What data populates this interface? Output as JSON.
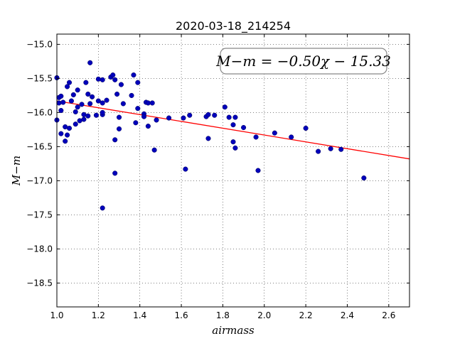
{
  "chart_data": {
    "type": "scatter",
    "title": "2020-03-18_214254",
    "xlabel": "airmass",
    "ylabel": "M−m",
    "xlim": [
      1.0,
      2.7
    ],
    "ylim": [
      -18.85,
      -14.85
    ],
    "y_inverted": true,
    "grid": true,
    "xticks": [
      1.0,
      1.2,
      1.4,
      1.6,
      1.8,
      2.0,
      2.2,
      2.4,
      2.6
    ],
    "xtick_labels": [
      "1.0",
      "1.2",
      "1.4",
      "1.6",
      "1.8",
      "2.0",
      "2.2",
      "2.4",
      "2.6"
    ],
    "yticks": [
      -15.0,
      -15.5,
      -16.0,
      -16.5,
      -17.0,
      -17.5,
      -18.0,
      -18.5
    ],
    "ytick_labels": [
      "−15.0",
      "−15.5",
      "−16.0",
      "−16.5",
      "−17.0",
      "−17.5",
      "−18.0",
      "−18.5"
    ],
    "annotation": "M−m = −0.50χ − 15.33",
    "fit": {
      "slope": -0.5,
      "intercept": -15.33,
      "x_range": [
        1.0,
        2.7
      ],
      "color": "#ff0000"
    },
    "point_color": "#0000bb",
    "points": [
      [
        1.0,
        -15.49
      ],
      [
        1.0,
        -16.11
      ],
      [
        1.01,
        -15.78
      ],
      [
        1.01,
        -15.86
      ],
      [
        1.02,
        -15.76
      ],
      [
        1.02,
        -15.97
      ],
      [
        1.02,
        -16.31
      ],
      [
        1.03,
        -15.85
      ],
      [
        1.04,
        -16.21
      ],
      [
        1.04,
        -16.42
      ],
      [
        1.05,
        -16.33
      ],
      [
        1.05,
        -15.62
      ],
      [
        1.06,
        -15.56
      ],
      [
        1.06,
        -16.23
      ],
      [
        1.07,
        -15.83
      ],
      [
        1.08,
        -15.74
      ],
      [
        1.09,
        -15.99
      ],
      [
        1.09,
        -16.17
      ],
      [
        1.1,
        -15.67
      ],
      [
        1.1,
        -15.92
      ],
      [
        1.11,
        -16.12
      ],
      [
        1.12,
        -15.88
      ],
      [
        1.13,
        -16.03
      ],
      [
        1.13,
        -16.1
      ],
      [
        1.14,
        -15.56
      ],
      [
        1.15,
        -15.73
      ],
      [
        1.15,
        -16.05
      ],
      [
        1.16,
        -15.87
      ],
      [
        1.16,
        -15.27
      ],
      [
        1.17,
        -15.77
      ],
      [
        1.19,
        -16.04
      ],
      [
        1.2,
        -15.51
      ],
      [
        1.2,
        -15.83
      ],
      [
        1.22,
        -15.52
      ],
      [
        1.22,
        -15.86
      ],
      [
        1.22,
        -16.03
      ],
      [
        1.22,
        -16.0
      ],
      [
        1.22,
        -17.4
      ],
      [
        1.24,
        -15.82
      ],
      [
        1.26,
        -15.48
      ],
      [
        1.27,
        -15.45
      ],
      [
        1.28,
        -15.52
      ],
      [
        1.28,
        -16.4
      ],
      [
        1.28,
        -16.89
      ],
      [
        1.29,
        -15.73
      ],
      [
        1.3,
        -16.07
      ],
      [
        1.3,
        -16.24
      ],
      [
        1.31,
        -15.59
      ],
      [
        1.32,
        -15.87
      ],
      [
        1.36,
        -15.75
      ],
      [
        1.37,
        -15.45
      ],
      [
        1.38,
        -16.15
      ],
      [
        1.39,
        -15.56
      ],
      [
        1.39,
        -15.94
      ],
      [
        1.42,
        -16.02
      ],
      [
        1.42,
        -16.06
      ],
      [
        1.43,
        -15.85
      ],
      [
        1.44,
        -15.86
      ],
      [
        1.44,
        -16.2
      ],
      [
        1.46,
        -15.86
      ],
      [
        1.47,
        -16.55
      ],
      [
        1.48,
        -16.11
      ],
      [
        1.54,
        -16.08
      ],
      [
        1.61,
        -16.08
      ],
      [
        1.62,
        -16.83
      ],
      [
        1.64,
        -16.04
      ],
      [
        1.72,
        -16.06
      ],
      [
        1.73,
        -16.03
      ],
      [
        1.73,
        -16.38
      ],
      [
        1.76,
        -16.04
      ],
      [
        1.81,
        -15.92
      ],
      [
        1.83,
        -16.07
      ],
      [
        1.85,
        -16.18
      ],
      [
        1.85,
        -16.43
      ],
      [
        1.86,
        -16.07
      ],
      [
        1.86,
        -16.52
      ],
      [
        1.9,
        -16.22
      ],
      [
        1.96,
        -16.36
      ],
      [
        1.97,
        -16.85
      ],
      [
        2.05,
        -16.3
      ],
      [
        2.13,
        -16.36
      ],
      [
        2.2,
        -16.23
      ],
      [
        2.26,
        -16.57
      ],
      [
        2.32,
        -16.53
      ],
      [
        2.37,
        -16.54
      ],
      [
        2.48,
        -16.96
      ]
    ]
  }
}
